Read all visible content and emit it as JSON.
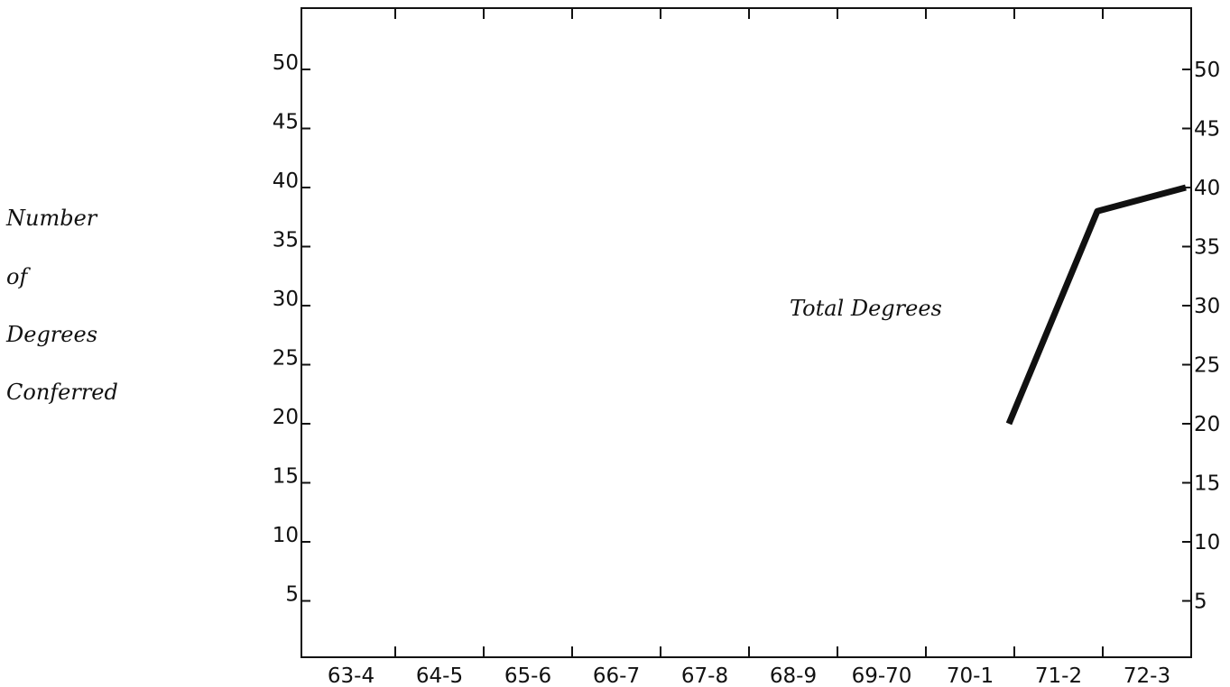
{
  "chart_data": {
    "type": "line",
    "title": "",
    "xlabel": "",
    "ylabel_lines": [
      "Number",
      "of",
      "Degrees",
      "Conferred"
    ],
    "categories": [
      "63-4",
      "64-5",
      "65-6",
      "66-7",
      "67-8",
      "68-9",
      "69-70",
      "70-1",
      "71-2",
      "72-3"
    ],
    "yticks": [
      5,
      10,
      15,
      20,
      25,
      30,
      35,
      40,
      45,
      50
    ],
    "ylim": [
      0,
      55
    ],
    "grid": false,
    "series": [
      {
        "name": "Total Degrees",
        "points": [
          {
            "x": "70-1",
            "y": 20
          },
          {
            "x": "71-2",
            "y": 38
          },
          {
            "x": "72-3",
            "y": 40
          }
        ]
      }
    ],
    "annotation": "Total Degrees",
    "line_color": "#111111"
  }
}
